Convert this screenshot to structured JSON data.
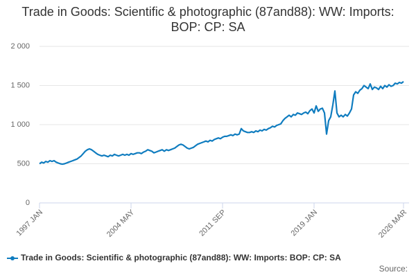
{
  "chart_data": {
    "type": "line",
    "title": "Trade in Goods: Scientific & photographic (87and88): WW: Imports: BOP: CP: SA",
    "source": "Source:",
    "categories": [
      "1997 JAN",
      null,
      null,
      null,
      null,
      null,
      null,
      null,
      null,
      null,
      null,
      null,
      null,
      null,
      null,
      null,
      null,
      null,
      null,
      null,
      null,
      null,
      null,
      null,
      null,
      null,
      null,
      null,
      null,
      null,
      null,
      null,
      null,
      null,
      null,
      null,
      null,
      null,
      null,
      null,
      null,
      null,
      null,
      null,
      "2004 MAY",
      null,
      null,
      null,
      null,
      null,
      null,
      null,
      null,
      null,
      null,
      null,
      null,
      null,
      null,
      null,
      null,
      null,
      null,
      null,
      null,
      null,
      null,
      null,
      null,
      null,
      null,
      null,
      null,
      null,
      null,
      null,
      null,
      null,
      null,
      null,
      null,
      null,
      null,
      null,
      null,
      null,
      null,
      null,
      "2011 SEP",
      null,
      null,
      null,
      null,
      null,
      null,
      null,
      null,
      null,
      null,
      null,
      null,
      null,
      null,
      null,
      null,
      null,
      null,
      null,
      null,
      null,
      null,
      null,
      null,
      null,
      null,
      null,
      null,
      null,
      null,
      null,
      null,
      null,
      null,
      null,
      null,
      null,
      null,
      null,
      null,
      null,
      null,
      null,
      "2019 JAN",
      null,
      null,
      null,
      null,
      null,
      null,
      null,
      null,
      null,
      null,
      null,
      null,
      null,
      null,
      null,
      null,
      null,
      null,
      null,
      null,
      null,
      null,
      null,
      null,
      null,
      null,
      null,
      null,
      null,
      null,
      null,
      null,
      null,
      null,
      null,
      null,
      null,
      null,
      null,
      null,
      null,
      null,
      "2026 MAR"
    ],
    "series": [
      {
        "name": "Trade in Goods: Scientific & photographic (87and88): WW: Imports: BOP: CP: SA",
        "color": "#0f7cbf",
        "values": [
          500,
          520,
          510,
          530,
          520,
          540,
          530,
          540,
          520,
          510,
          500,
          495,
          500,
          510,
          520,
          530,
          540,
          550,
          560,
          580,
          600,
          630,
          660,
          680,
          690,
          680,
          660,
          640,
          620,
          610,
          600,
          610,
          600,
          590,
          610,
          600,
          620,
          610,
          600,
          610,
          620,
          610,
          620,
          610,
          630,
          620,
          630,
          640,
          640,
          630,
          650,
          660,
          680,
          670,
          660,
          640,
          650,
          660,
          670,
          680,
          660,
          680,
          670,
          680,
          690,
          700,
          720,
          740,
          750,
          740,
          720,
          700,
          690,
          700,
          710,
          730,
          750,
          760,
          770,
          780,
          790,
          780,
          800,
          790,
          810,
          820,
          830,
          820,
          840,
          850,
          850,
          860,
          870,
          860,
          880,
          870,
          880,
          950,
          920,
          910,
          900,
          900,
          910,
          900,
          920,
          910,
          930,
          920,
          940,
          930,
          950,
          960,
          980,
          970,
          990,
          1000,
          1010,
          1050,
          1080,
          1100,
          1120,
          1100,
          1130,
          1120,
          1150,
          1140,
          1130,
          1150,
          1160,
          1140,
          1180,
          1200,
          1150,
          1240,
          1170,
          1200,
          1210,
          1150,
          880,
          1050,
          1100,
          1250,
          1430,
          1150,
          1100,
          1120,
          1100,
          1130,
          1110,
          1150,
          1200,
          1380,
          1420,
          1400,
          1440,
          1460,
          1500,
          1480,
          1460,
          1520,
          1450,
          1480,
          1470,
          1450,
          1490,
          1460,
          1500,
          1480,
          1510,
          1490,
          1500,
          1530,
          1520,
          1540,
          1530,
          1550
        ]
      }
    ],
    "ylim": [
      0,
      2000
    ],
    "yticks": [
      0,
      500,
      {
        "value": 1000,
        "label": "1 000"
      },
      {
        "value": 1500,
        "label": "1 500"
      },
      {
        "value": 2000,
        "label": "2 000"
      }
    ],
    "grid": true,
    "legend": "bottom"
  }
}
